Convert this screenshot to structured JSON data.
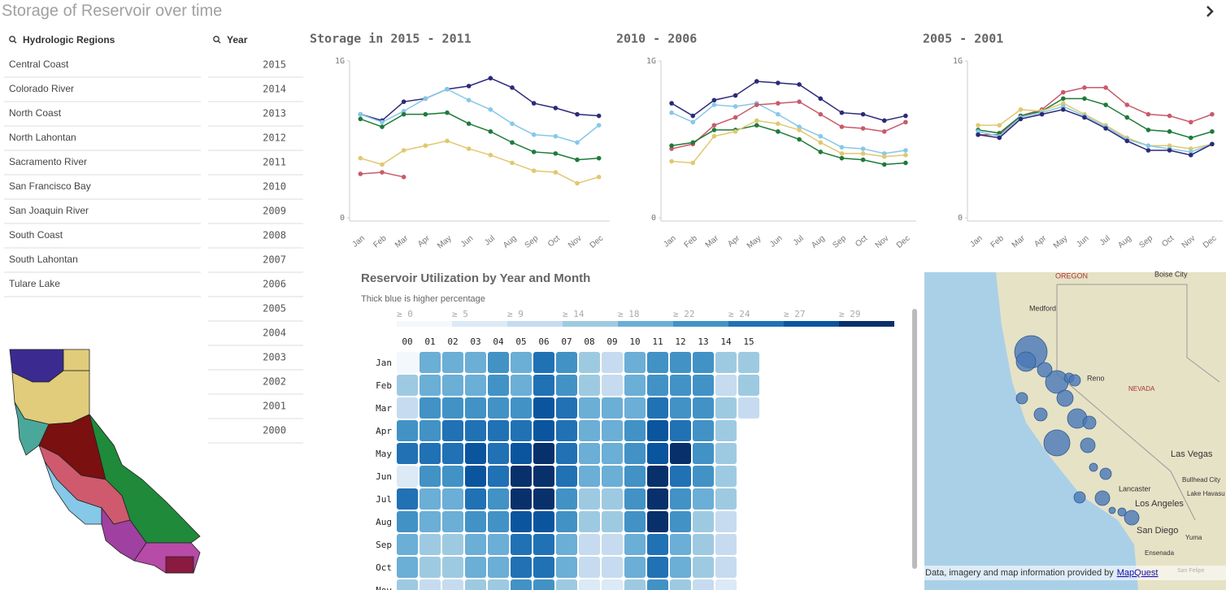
{
  "header": {
    "title": "Storage of Reservoir over time"
  },
  "filters": {
    "regions": {
      "label": "Hydrologic Regions",
      "items": [
        "Central Coast",
        "Colorado River",
        "North Coast",
        "North Lahontan",
        "Sacramento River",
        "San Francisco Bay",
        "San Joaquin River",
        "South Coast",
        "South Lahontan",
        "Tulare Lake"
      ]
    },
    "years": {
      "label": "Year",
      "items": [
        "2015",
        "2014",
        "2013",
        "2012",
        "2011",
        "2010",
        "2009",
        "2008",
        "2007",
        "2006",
        "2005",
        "2004",
        "2003",
        "2002",
        "2001",
        "2000"
      ]
    }
  },
  "line_charts": [
    {
      "type": "line",
      "title": "Storage in 2015 - 2011",
      "categories": [
        "Jan",
        "Feb",
        "Mar",
        "Apr",
        "May",
        "Jun",
        "Jul",
        "Aug",
        "Sep",
        "Oct",
        "Nov",
        "Dec"
      ],
      "ylim": [
        0,
        1
      ],
      "yticks": [
        0,
        {
          "value": 1,
          "label": "1G"
        }
      ],
      "series": [
        {
          "color": "#2c2a78",
          "values": [
            0.66,
            0.62,
            0.74,
            0.76,
            0.82,
            0.84,
            0.89,
            0.83,
            0.73,
            0.7,
            0.66,
            0.65
          ]
        },
        {
          "color": "#86c8e8",
          "values": [
            0.66,
            0.61,
            0.68,
            0.76,
            0.82,
            0.75,
            0.69,
            0.6,
            0.53,
            0.52,
            0.48,
            0.59
          ]
        },
        {
          "color": "#1f7a3a",
          "values": [
            0.63,
            0.58,
            0.66,
            0.66,
            0.67,
            0.6,
            0.55,
            0.48,
            0.42,
            0.41,
            0.37,
            0.38
          ]
        },
        {
          "color": "#e0c870",
          "values": [
            0.38,
            0.34,
            0.43,
            0.46,
            0.49,
            0.44,
            0.4,
            0.35,
            0.3,
            0.29,
            0.22,
            0.26
          ]
        },
        {
          "color": "#c85a6a",
          "values": [
            0.28,
            0.29,
            0.26,
            null,
            null,
            null,
            null,
            null,
            null,
            null,
            null,
            null
          ]
        }
      ]
    },
    {
      "type": "line",
      "title": "2010 - 2006",
      "categories": [
        "Jan",
        "Feb",
        "Mar",
        "Apr",
        "May",
        "Jun",
        "Jul",
        "Aug",
        "Sep",
        "Oct",
        "Nov",
        "Dec"
      ],
      "ylim": [
        0,
        1
      ],
      "yticks": [
        0,
        {
          "value": 1,
          "label": "1G"
        }
      ],
      "series": [
        {
          "color": "#2c2a78",
          "values": [
            0.73,
            0.65,
            0.75,
            0.78,
            0.87,
            0.86,
            0.85,
            0.76,
            0.67,
            0.66,
            0.62,
            0.65
          ]
        },
        {
          "color": "#86c8e8",
          "values": [
            0.67,
            0.61,
            0.72,
            0.71,
            0.73,
            0.66,
            0.58,
            0.52,
            0.45,
            0.44,
            0.41,
            0.43
          ]
        },
        {
          "color": "#c85a6a",
          "values": [
            0.44,
            0.47,
            0.59,
            0.64,
            0.72,
            0.73,
            0.74,
            0.66,
            0.58,
            0.57,
            0.55,
            0.61
          ]
        },
        {
          "color": "#1f7a3a",
          "values": [
            0.46,
            0.48,
            0.56,
            0.56,
            0.59,
            0.55,
            0.5,
            0.42,
            0.38,
            0.37,
            0.34,
            0.35
          ]
        },
        {
          "color": "#e0c870",
          "values": [
            0.36,
            0.35,
            0.52,
            0.55,
            0.62,
            0.6,
            0.56,
            0.48,
            0.41,
            0.41,
            0.39,
            0.4
          ]
        }
      ]
    },
    {
      "type": "line",
      "title": "2005 - 2001",
      "categories": [
        "Jan",
        "Feb",
        "Mar",
        "Apr",
        "May",
        "Jun",
        "Jul",
        "Aug",
        "Sep",
        "Oct",
        "Nov",
        "Dec"
      ],
      "ylim": [
        0,
        1
      ],
      "yticks": [
        0,
        {
          "value": 1,
          "label": "1G"
        }
      ],
      "series": [
        {
          "color": "#c85a6a",
          "values": [
            0.53,
            0.53,
            0.65,
            0.69,
            0.8,
            0.83,
            0.83,
            0.72,
            0.66,
            0.65,
            0.61,
            0.66
          ]
        },
        {
          "color": "#1f7a3a",
          "values": [
            0.56,
            0.54,
            0.65,
            0.68,
            0.76,
            0.76,
            0.72,
            0.64,
            0.56,
            0.55,
            0.51,
            0.55
          ]
        },
        {
          "color": "#e0c870",
          "values": [
            0.59,
            0.59,
            0.69,
            0.68,
            0.73,
            0.66,
            0.59,
            0.51,
            0.46,
            0.46,
            0.44,
            0.47
          ]
        },
        {
          "color": "#86c8e8",
          "values": [
            0.55,
            0.52,
            0.64,
            0.67,
            0.71,
            0.65,
            0.58,
            0.5,
            0.46,
            0.44,
            0.42,
            0.47
          ]
        },
        {
          "color": "#2c2a78",
          "values": [
            0.53,
            0.51,
            0.63,
            0.66,
            0.69,
            0.64,
            0.57,
            0.49,
            0.43,
            0.43,
            0.4,
            0.47
          ]
        }
      ]
    }
  ],
  "heatmap": {
    "type": "heatmap",
    "title": "Reservoir Utilization by Year and Month",
    "subtitle": "Thick blue is higher percentage",
    "legend": [
      {
        "value": 0,
        "label": "≥ 0"
      },
      {
        "value": 5,
        "label": "≥ 5"
      },
      {
        "value": 9,
        "label": "≥ 9"
      },
      {
        "value": 14,
        "label": "≥ 14"
      },
      {
        "value": 18,
        "label": "≥ 18"
      },
      {
        "value": 22,
        "label": "≥ 22"
      },
      {
        "value": 24,
        "label": "≥ 24"
      },
      {
        "value": 27,
        "label": "≥ 27"
      },
      {
        "value": 29,
        "label": "≥ 29"
      }
    ],
    "colors": [
      "#f3f8fd",
      "#dce9f6",
      "#c6dbef",
      "#9ecae1",
      "#6baed6",
      "#4292c6",
      "#2171b5",
      "#0b559f",
      "#08306b"
    ],
    "columns": [
      "00",
      "01",
      "02",
      "03",
      "04",
      "05",
      "06",
      "07",
      "08",
      "09",
      "10",
      "11",
      "12",
      "13",
      "14",
      "15"
    ],
    "rows": [
      "Jan",
      "Feb",
      "Mar",
      "Apr",
      "May",
      "Jun",
      "Jul",
      "Aug",
      "Sep",
      "Oct",
      "Nov"
    ],
    "values": [
      [
        2,
        20,
        20,
        20,
        23,
        20,
        25,
        23,
        16,
        11,
        20,
        23,
        23,
        23,
        16,
        16
      ],
      [
        16,
        20,
        20,
        20,
        23,
        20,
        25,
        23,
        16,
        11,
        20,
        23,
        23,
        23,
        11,
        16
      ],
      [
        11,
        23,
        23,
        23,
        23,
        23,
        28,
        25,
        20,
        20,
        20,
        25,
        23,
        23,
        16,
        11
      ],
      [
        23,
        23,
        25,
        25,
        25,
        25,
        28,
        25,
        20,
        20,
        23,
        28,
        25,
        23,
        16,
        null
      ],
      [
        25,
        25,
        25,
        28,
        25,
        28,
        30,
        25,
        20,
        20,
        23,
        28,
        30,
        23,
        16,
        null
      ],
      [
        7,
        23,
        23,
        28,
        25,
        30,
        30,
        25,
        20,
        20,
        23,
        30,
        25,
        23,
        16,
        null
      ],
      [
        25,
        20,
        20,
        25,
        23,
        30,
        30,
        23,
        16,
        16,
        23,
        30,
        23,
        20,
        16,
        null
      ],
      [
        23,
        20,
        20,
        23,
        23,
        28,
        28,
        23,
        16,
        16,
        23,
        30,
        23,
        16,
        11,
        null
      ],
      [
        20,
        16,
        16,
        20,
        20,
        25,
        25,
        20,
        11,
        11,
        20,
        25,
        20,
        16,
        11,
        null
      ],
      [
        20,
        16,
        16,
        20,
        20,
        25,
        25,
        20,
        11,
        11,
        20,
        25,
        20,
        16,
        11,
        null
      ],
      [
        16,
        11,
        11,
        16,
        16,
        23,
        23,
        16,
        7,
        7,
        16,
        23,
        16,
        11,
        7,
        null
      ]
    ]
  },
  "map": {
    "labels": [
      "OREGON",
      "Boise City",
      "Medford",
      "Reno",
      "NEVADA",
      "Las Vegas",
      "Bullhead City",
      "Lake Havasu",
      "Lancaster",
      "Los Angeles",
      "San Diego",
      "Yuma",
      "Ensenada",
      "San Felipe"
    ],
    "attribution": "Data, imagery and map information provided by",
    "link": "MapQuest"
  }
}
